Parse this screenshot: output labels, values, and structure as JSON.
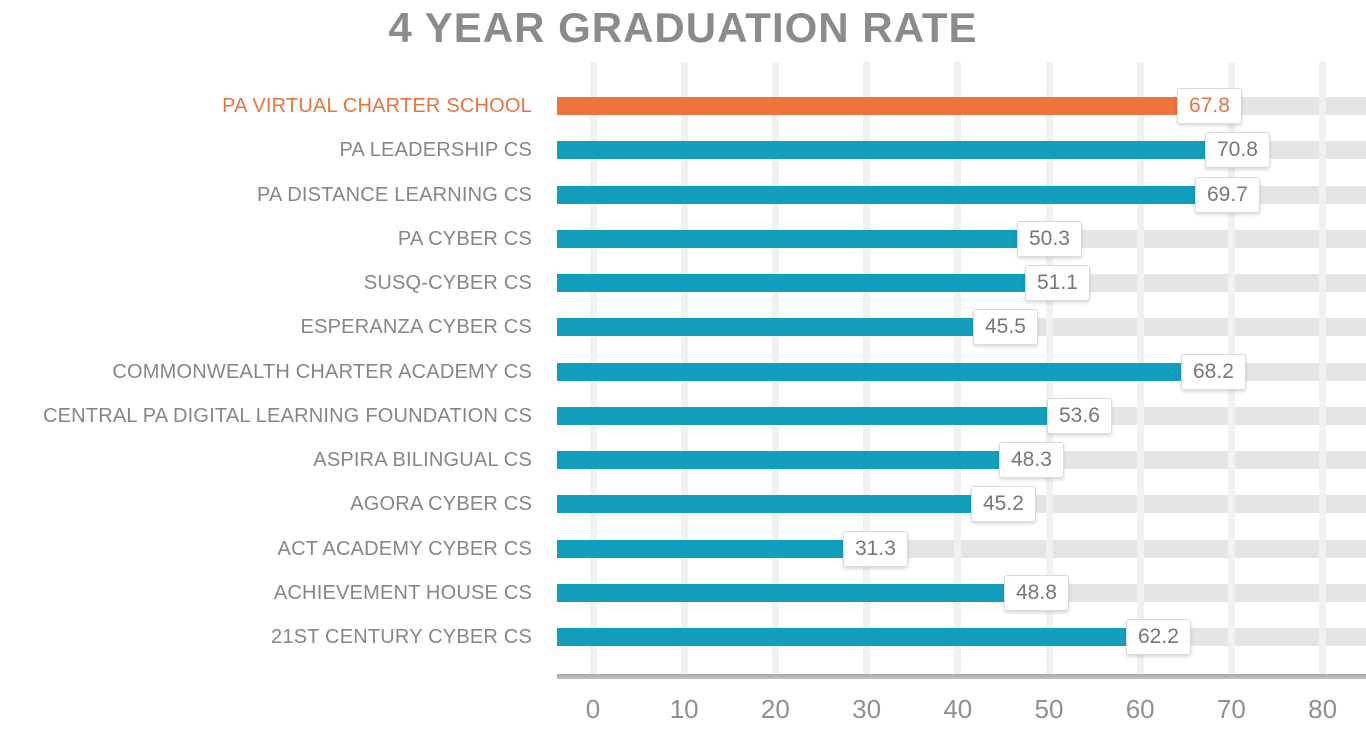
{
  "chart_data": {
    "type": "bar",
    "orientation": "horizontal",
    "title": "4 YEAR GRADUATION RATE",
    "categories": [
      "PA VIRTUAL CHARTER SCHOOL",
      "PA LEADERSHIP CS",
      "PA DISTANCE LEARNING CS",
      "PA CYBER CS",
      "SUSQ-CYBER CS",
      "ESPERANZA CYBER CS",
      "COMMONWEALTH CHARTER ACADEMY CS",
      "CENTRAL PA DIGITAL LEARNING FOUNDATION CS",
      "ASPIRA BILINGUAL CS",
      "AGORA CYBER CS",
      "ACT ACADEMY CYBER CS",
      "ACHIEVEMENT HOUSE CS",
      "21ST CENTURY CYBER CS"
    ],
    "values": [
      67.8,
      70.8,
      69.7,
      50.3,
      51.1,
      45.5,
      68.2,
      53.6,
      48.3,
      45.2,
      31.3,
      48.8,
      62.2
    ],
    "value_labels": [
      "67.8",
      "70.8",
      "69.7",
      "50.3",
      "51.1",
      "45.5",
      "68.2",
      "53.6",
      "48.3",
      "45.2",
      "31.3",
      "48.8",
      "62.2"
    ],
    "highlight_index": 0,
    "xlabel": "",
    "ylabel": "",
    "xlim": [
      0,
      80
    ],
    "xticks": [
      0,
      10,
      20,
      30,
      40,
      50,
      60,
      70,
      80
    ],
    "grid": true,
    "legend": "none",
    "colors": {
      "highlight_bar": "#EF7439",
      "highlight_text": "#E8743C",
      "default_bar": "#139EBE",
      "track": "#E3E5E7",
      "gridline": "#EFF1F3",
      "axis_line": "#AFB0B3",
      "title_text": "#8B8B8B",
      "category_text": "#85868A",
      "value_text": "#76777A",
      "tick_text": "#8F9093"
    }
  }
}
